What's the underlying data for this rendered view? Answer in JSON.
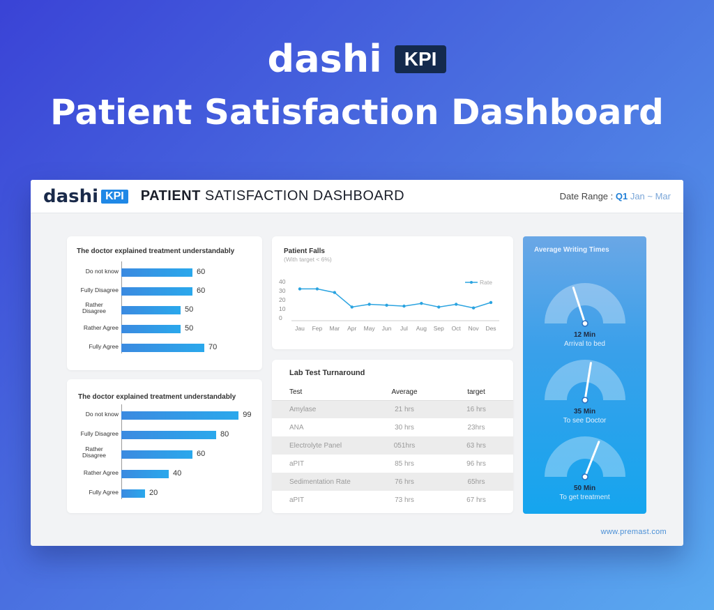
{
  "hero": {
    "logo_word": "dashi",
    "logo_badge": "KPI",
    "title": "Patient Satisfaction Dashboard"
  },
  "header": {
    "logo_word": "dashi",
    "logo_badge": "KPI",
    "title_bold": "PATIENT",
    "title_rest": " SATISFACTION DASHBOARD",
    "date_range_label": "Date Range : ",
    "date_range_quarter": "Q1",
    "date_range_months": " Jan ~ Mar"
  },
  "bar_panel_1": {
    "title": "The doctor explained treatment understandably",
    "items": [
      {
        "label": "Do not know",
        "value": 60
      },
      {
        "label": "Fully Disagree",
        "value": 60
      },
      {
        "label": "Rather Disagree",
        "value": 50
      },
      {
        "label": "Rather Agree",
        "value": 50
      },
      {
        "label": "Fully Agree",
        "value": 70
      }
    ],
    "max": 100
  },
  "bar_panel_2": {
    "title": "The doctor explained treatment understandably",
    "items": [
      {
        "label": "Do not know",
        "value": 99
      },
      {
        "label": "Fully Disagree",
        "value": 80
      },
      {
        "label": "Rather Disagree",
        "value": 60
      },
      {
        "label": "Rather Agree",
        "value": 40
      },
      {
        "label": "Fully Agree",
        "value": 20
      }
    ],
    "max": 100
  },
  "patient_falls": {
    "title": "Patient Falls",
    "subtitle": "(With target < 6%)",
    "legend": "Rate",
    "color": "#2aa3e0"
  },
  "chart_data": {
    "type": "line",
    "title": "Patient Falls",
    "subtitle": "(With target < 6%)",
    "x": [
      "Jau",
      "Fep",
      "Mar",
      "Apr",
      "May",
      "Jun",
      "Jul",
      "Aug",
      "Sep",
      "Oct",
      "Nov",
      "Des"
    ],
    "series": [
      {
        "name": "Rate",
        "values": [
          32,
          32,
          28,
          12,
          15,
          14,
          13,
          16,
          12,
          15,
          11,
          17
        ]
      }
    ],
    "yticks": [
      "0",
      "10",
      "20",
      "30",
      "40"
    ],
    "ylim": [
      0,
      40
    ],
    "legend_position": "top-right",
    "grid": false
  },
  "lab": {
    "title": "Lab Test Turnaround",
    "headers": [
      "Test",
      "Average",
      "target"
    ],
    "rows": [
      {
        "test": "Amylase",
        "avg": "21 hrs",
        "target": "16 hrs"
      },
      {
        "test": "ANA",
        "avg": "30 hrs",
        "target": "23hrs"
      },
      {
        "test": "Electrolyte Panel",
        "avg": "051hrs",
        "target": "63 hrs"
      },
      {
        "test": "aPIT",
        "avg": "85 hrs",
        "target": "96 hrs"
      },
      {
        "test": "Sedimentation Rate",
        "avg": "76 hrs",
        "target": "65hrs"
      },
      {
        "test": "aPIT",
        "avg": "73 hrs",
        "target": "67 hrs"
      }
    ]
  },
  "gauges": {
    "title": "Average Writing Times",
    "items": [
      {
        "value": "12 Min",
        "label": "Arrival to bed",
        "level": 0.4
      },
      {
        "value": "35 Min",
        "label": "To see Doctor",
        "level": 0.55
      },
      {
        "value": "50 Min",
        "label": "To get treatment",
        "level": 0.62
      }
    ]
  },
  "footer": {
    "url": "www.premast.com"
  }
}
